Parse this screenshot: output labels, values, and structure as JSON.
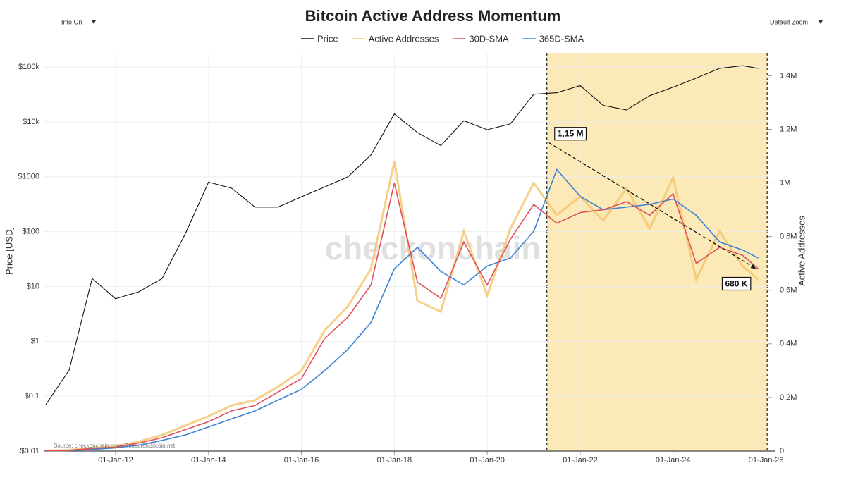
{
  "chart_data": {
    "type": "line",
    "title": "Bitcoin Active Address Momentum",
    "controls": {
      "left": "Info On",
      "right": "Default Zoom"
    },
    "watermark": "checkonchain",
    "source": "Source: checkonchain.com, ResearchBitcoin.net",
    "y_label": "Price [USD]",
    "y2_label": "Active Addresses",
    "y_scale": "log",
    "grid": true,
    "legend": "top",
    "x": [
      "2010-07-01",
      "2011-01-01",
      "2011-07-01",
      "2012-01-01",
      "2012-07-01",
      "2013-01-01",
      "2013-07-01",
      "2014-01-01",
      "2014-07-01",
      "2015-01-01",
      "2015-07-01",
      "2016-01-01",
      "2016-07-01",
      "2017-01-01",
      "2017-07-01",
      "2018-01-01",
      "2018-07-01",
      "2019-01-01",
      "2019-07-01",
      "2020-01-01",
      "2020-07-01",
      "2021-01-01",
      "2021-07-01",
      "2022-01-01",
      "2022-07-01",
      "2023-01-01",
      "2023-07-01",
      "2024-01-01",
      "2024-07-01",
      "2025-01-01",
      "2025-07-01",
      "2025-11-01"
    ],
    "xlim": [
      "2010-06-15",
      "2026-01-20"
    ],
    "xticks": [
      {
        "value": "2012-01-01",
        "label": "01-Jan-12"
      },
      {
        "value": "2014-01-01",
        "label": "01-Jan-14"
      },
      {
        "value": "2016-01-01",
        "label": "01-Jan-16"
      },
      {
        "value": "2018-01-01",
        "label": "01-Jan-18"
      },
      {
        "value": "2020-01-01",
        "label": "01-Jan-20"
      },
      {
        "value": "2022-01-01",
        "label": "01-Jan-22"
      },
      {
        "value": "2024-01-01",
        "label": "01-Jan-24"
      },
      {
        "value": "2026-01-01",
        "label": "01-Jan-26"
      }
    ],
    "ylim": [
      0.01,
      300000
    ],
    "yticks": [
      {
        "value": 0.01,
        "label": "$0.01"
      },
      {
        "value": 0.1,
        "label": "$0.1"
      },
      {
        "value": 1,
        "label": "$1"
      },
      {
        "value": 10,
        "label": "$10"
      },
      {
        "value": 100,
        "label": "$100"
      },
      {
        "value": 1000,
        "label": "$1000"
      },
      {
        "value": 10000,
        "label": "$10k"
      },
      {
        "value": 100000,
        "label": "$100k"
      }
    ],
    "y2lim": [
      0,
      1530000
    ],
    "y2ticks": [
      0,
      {
        "value": 200000,
        "label": "0.2M"
      },
      {
        "value": 400000,
        "label": "0.4M"
      },
      {
        "value": 600000,
        "label": "0.6M"
      },
      {
        "value": 800000,
        "label": "0.8M"
      },
      {
        "value": 1000000,
        "label": "1M"
      },
      {
        "value": 1200000,
        "label": "1.2M"
      },
      {
        "value": 1400000,
        "label": "1.4M"
      }
    ],
    "series": [
      {
        "name": "Price",
        "color": "#111111",
        "axis": "y",
        "values": [
          0.07,
          0.3,
          14,
          6,
          8,
          14,
          90,
          800,
          620,
          280,
          280,
          430,
          650,
          1000,
          2500,
          14000,
          6400,
          3700,
          10500,
          7200,
          9200,
          32000,
          34000,
          46000,
          20000,
          16500,
          30000,
          43000,
          63000,
          95000,
          106000,
          95000
        ]
      },
      {
        "name": "Active Addresses",
        "color": "#f5c46a",
        "axis": "y2",
        "values": [
          1500,
          4000,
          12000,
          18000,
          35000,
          60000,
          95000,
          130000,
          170000,
          190000,
          240000,
          300000,
          450000,
          540000,
          680000,
          1080000,
          560000,
          520000,
          820000,
          580000,
          830000,
          1000000,
          880000,
          950000,
          860000,
          980000,
          830000,
          1020000,
          640000,
          820000,
          690000,
          640000
        ]
      },
      {
        "name": "30D-SMA",
        "color": "#e0505a",
        "axis": "y2",
        "values": [
          1000,
          3000,
          10000,
          15000,
          30000,
          50000,
          80000,
          110000,
          150000,
          170000,
          220000,
          270000,
          420000,
          500000,
          620000,
          1000000,
          630000,
          570000,
          780000,
          620000,
          790000,
          920000,
          850000,
          890000,
          900000,
          930000,
          880000,
          960000,
          700000,
          760000,
          730000,
          680000
        ]
      },
      {
        "name": "365D-SMA",
        "color": "#3b82d6",
        "axis": "y2",
        "values": [
          500,
          2000,
          6000,
          12000,
          22000,
          40000,
          60000,
          90000,
          120000,
          150000,
          190000,
          230000,
          300000,
          380000,
          480000,
          680000,
          760000,
          670000,
          620000,
          690000,
          720000,
          820000,
          1050000,
          950000,
          900000,
          910000,
          920000,
          940000,
          880000,
          780000,
          750000,
          720000
        ]
      }
    ],
    "highlight": {
      "x": [
        "2021-04-14",
        "2026-01-10"
      ],
      "color": "#fbe9b7"
    },
    "annotations": [
      {
        "label": "1,15 M",
        "x": "2021-05-01",
        "value": 1150000
      },
      {
        "label": "680 K",
        "x": "2025-10-15",
        "value": 680000
      }
    ]
  }
}
